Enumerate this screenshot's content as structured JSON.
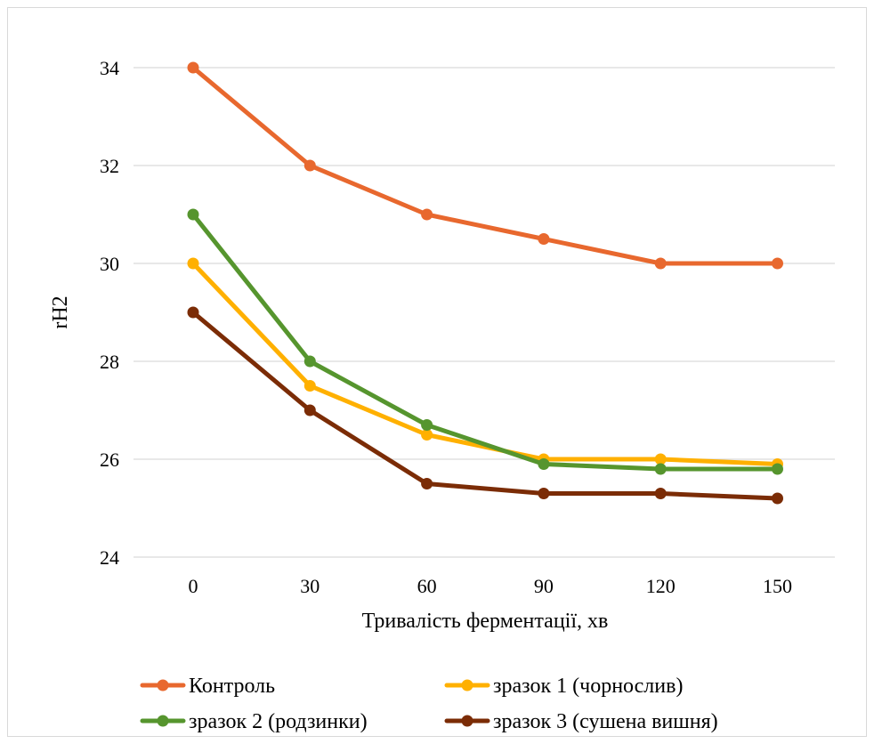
{
  "chart_data": {
    "type": "line",
    "title": "",
    "xlabel": "Тривалість ферментації, хв",
    "ylabel": "rH2",
    "x": [
      0,
      30,
      60,
      90,
      120,
      150
    ],
    "x_tick_labels": [
      "0",
      "30",
      "60",
      "90",
      "120",
      "150"
    ],
    "ylim": [
      24,
      34
    ],
    "y_ticks": [
      24,
      26,
      28,
      30,
      32,
      34
    ],
    "y_tick_labels": [
      "24",
      "26",
      "28",
      "30",
      "32",
      "34"
    ],
    "grid": "horizontal",
    "legend_position": "bottom",
    "series": [
      {
        "name": "Контроль",
        "color": "#E8682E",
        "values": [
          34,
          32,
          31,
          30.5,
          30,
          30
        ]
      },
      {
        "name": "зразок 1 (чорнослив)",
        "color": "#FFB000",
        "values": [
          30,
          27.5,
          26.5,
          26,
          26,
          25.9
        ]
      },
      {
        "name": "зразок 2 (родзинки)",
        "color": "#56952E",
        "values": [
          31,
          28,
          26.7,
          25.9,
          25.8,
          25.8
        ]
      },
      {
        "name": "зразок 3 (сушена вишня)",
        "color": "#7B2C06",
        "values": [
          29,
          27,
          25.5,
          25.3,
          25.3,
          25.2
        ]
      }
    ]
  }
}
